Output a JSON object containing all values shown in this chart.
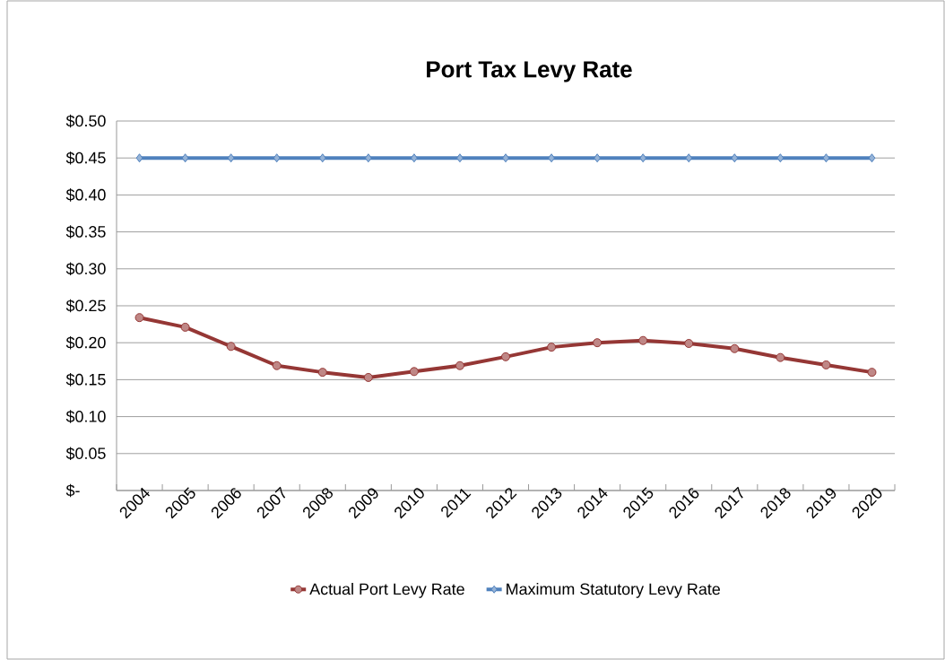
{
  "chart_data": {
    "type": "line",
    "title": "Port Tax Levy Rate",
    "categories": [
      "2004",
      "2005",
      "2006",
      "2007",
      "2008",
      "2009",
      "2010",
      "2011",
      "2012",
      "2013",
      "2014",
      "2015",
      "2016",
      "2017",
      "2018",
      "2019",
      "2020"
    ],
    "series": [
      {
        "name": "Actual Port Levy Rate",
        "color": "#953735",
        "marker": "circle",
        "values": [
          0.234,
          0.221,
          0.195,
          0.169,
          0.16,
          0.153,
          0.161,
          0.169,
          0.181,
          0.194,
          0.2,
          0.203,
          0.199,
          0.192,
          0.18,
          0.17,
          0.16
        ]
      },
      {
        "name": "Maximum Statutory Levy Rate",
        "color": "#4f81bd",
        "marker": "diamond",
        "values": [
          0.45,
          0.45,
          0.45,
          0.45,
          0.45,
          0.45,
          0.45,
          0.45,
          0.45,
          0.45,
          0.45,
          0.45,
          0.45,
          0.45,
          0.45,
          0.45,
          0.45
        ]
      }
    ],
    "ylim": [
      0,
      0.5
    ],
    "yticks": [
      {
        "value": 0,
        "label": "$-"
      },
      {
        "value": 0.05,
        "label": "$0.05"
      },
      {
        "value": 0.1,
        "label": "$0.10"
      },
      {
        "value": 0.15,
        "label": "$0.15"
      },
      {
        "value": 0.2,
        "label": "$0.20"
      },
      {
        "value": 0.25,
        "label": "$0.25"
      },
      {
        "value": 0.3,
        "label": "$0.30"
      },
      {
        "value": 0.35,
        "label": "$0.35"
      },
      {
        "value": 0.4,
        "label": "$0.40"
      },
      {
        "value": 0.45,
        "label": "$0.45"
      },
      {
        "value": 0.5,
        "label": "$0.50"
      }
    ],
    "grid": "y",
    "legend": "bottom"
  }
}
